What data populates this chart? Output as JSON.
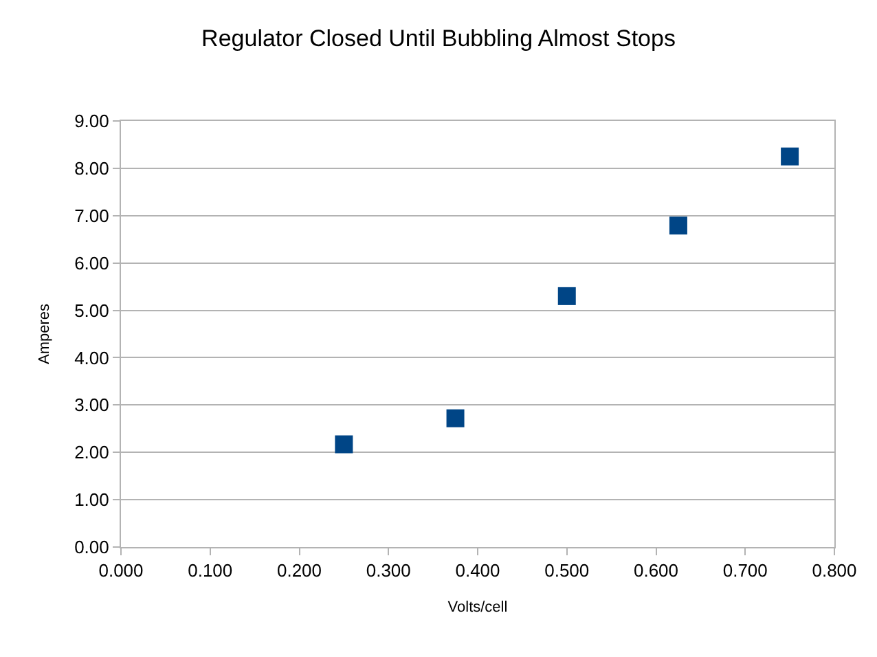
{
  "chart_data": {
    "type": "scatter",
    "title": "Regulator Closed Until Bubbling Almost Stops",
    "xlabel": "Volts/cell",
    "ylabel": "Amperes",
    "x": [
      0.25,
      0.375,
      0.5,
      0.625,
      0.75
    ],
    "series": [
      {
        "color": "#004586",
        "values": [
          2.17,
          2.72,
          5.3,
          6.79,
          8.25
        ]
      }
    ],
    "marker": "square",
    "grid": "y",
    "xlim": [
      0,
      0.8
    ],
    "xticks": [
      {
        "value": 0,
        "label": "0.000"
      },
      {
        "value": 0.1,
        "label": "0.100"
      },
      {
        "value": 0.2,
        "label": "0.200"
      },
      {
        "value": 0.3,
        "label": "0.300"
      },
      {
        "value": 0.4,
        "label": "0.400"
      },
      {
        "value": 0.5,
        "label": "0.500"
      },
      {
        "value": 0.6,
        "label": "0.600"
      },
      {
        "value": 0.7,
        "label": "0.700"
      },
      {
        "value": 0.8,
        "label": "0.800"
      }
    ],
    "ylim": [
      0,
      9
    ],
    "yticks": [
      {
        "value": 0,
        "label": "0.00"
      },
      {
        "value": 1,
        "label": "1.00"
      },
      {
        "value": 2,
        "label": "2.00"
      },
      {
        "value": 3,
        "label": "3.00"
      },
      {
        "value": 4,
        "label": "4.00"
      },
      {
        "value": 5,
        "label": "5.00"
      },
      {
        "value": 6,
        "label": "6.00"
      },
      {
        "value": 7,
        "label": "7.00"
      },
      {
        "value": 8,
        "label": "8.00"
      },
      {
        "value": 9,
        "label": "9.00"
      }
    ]
  }
}
